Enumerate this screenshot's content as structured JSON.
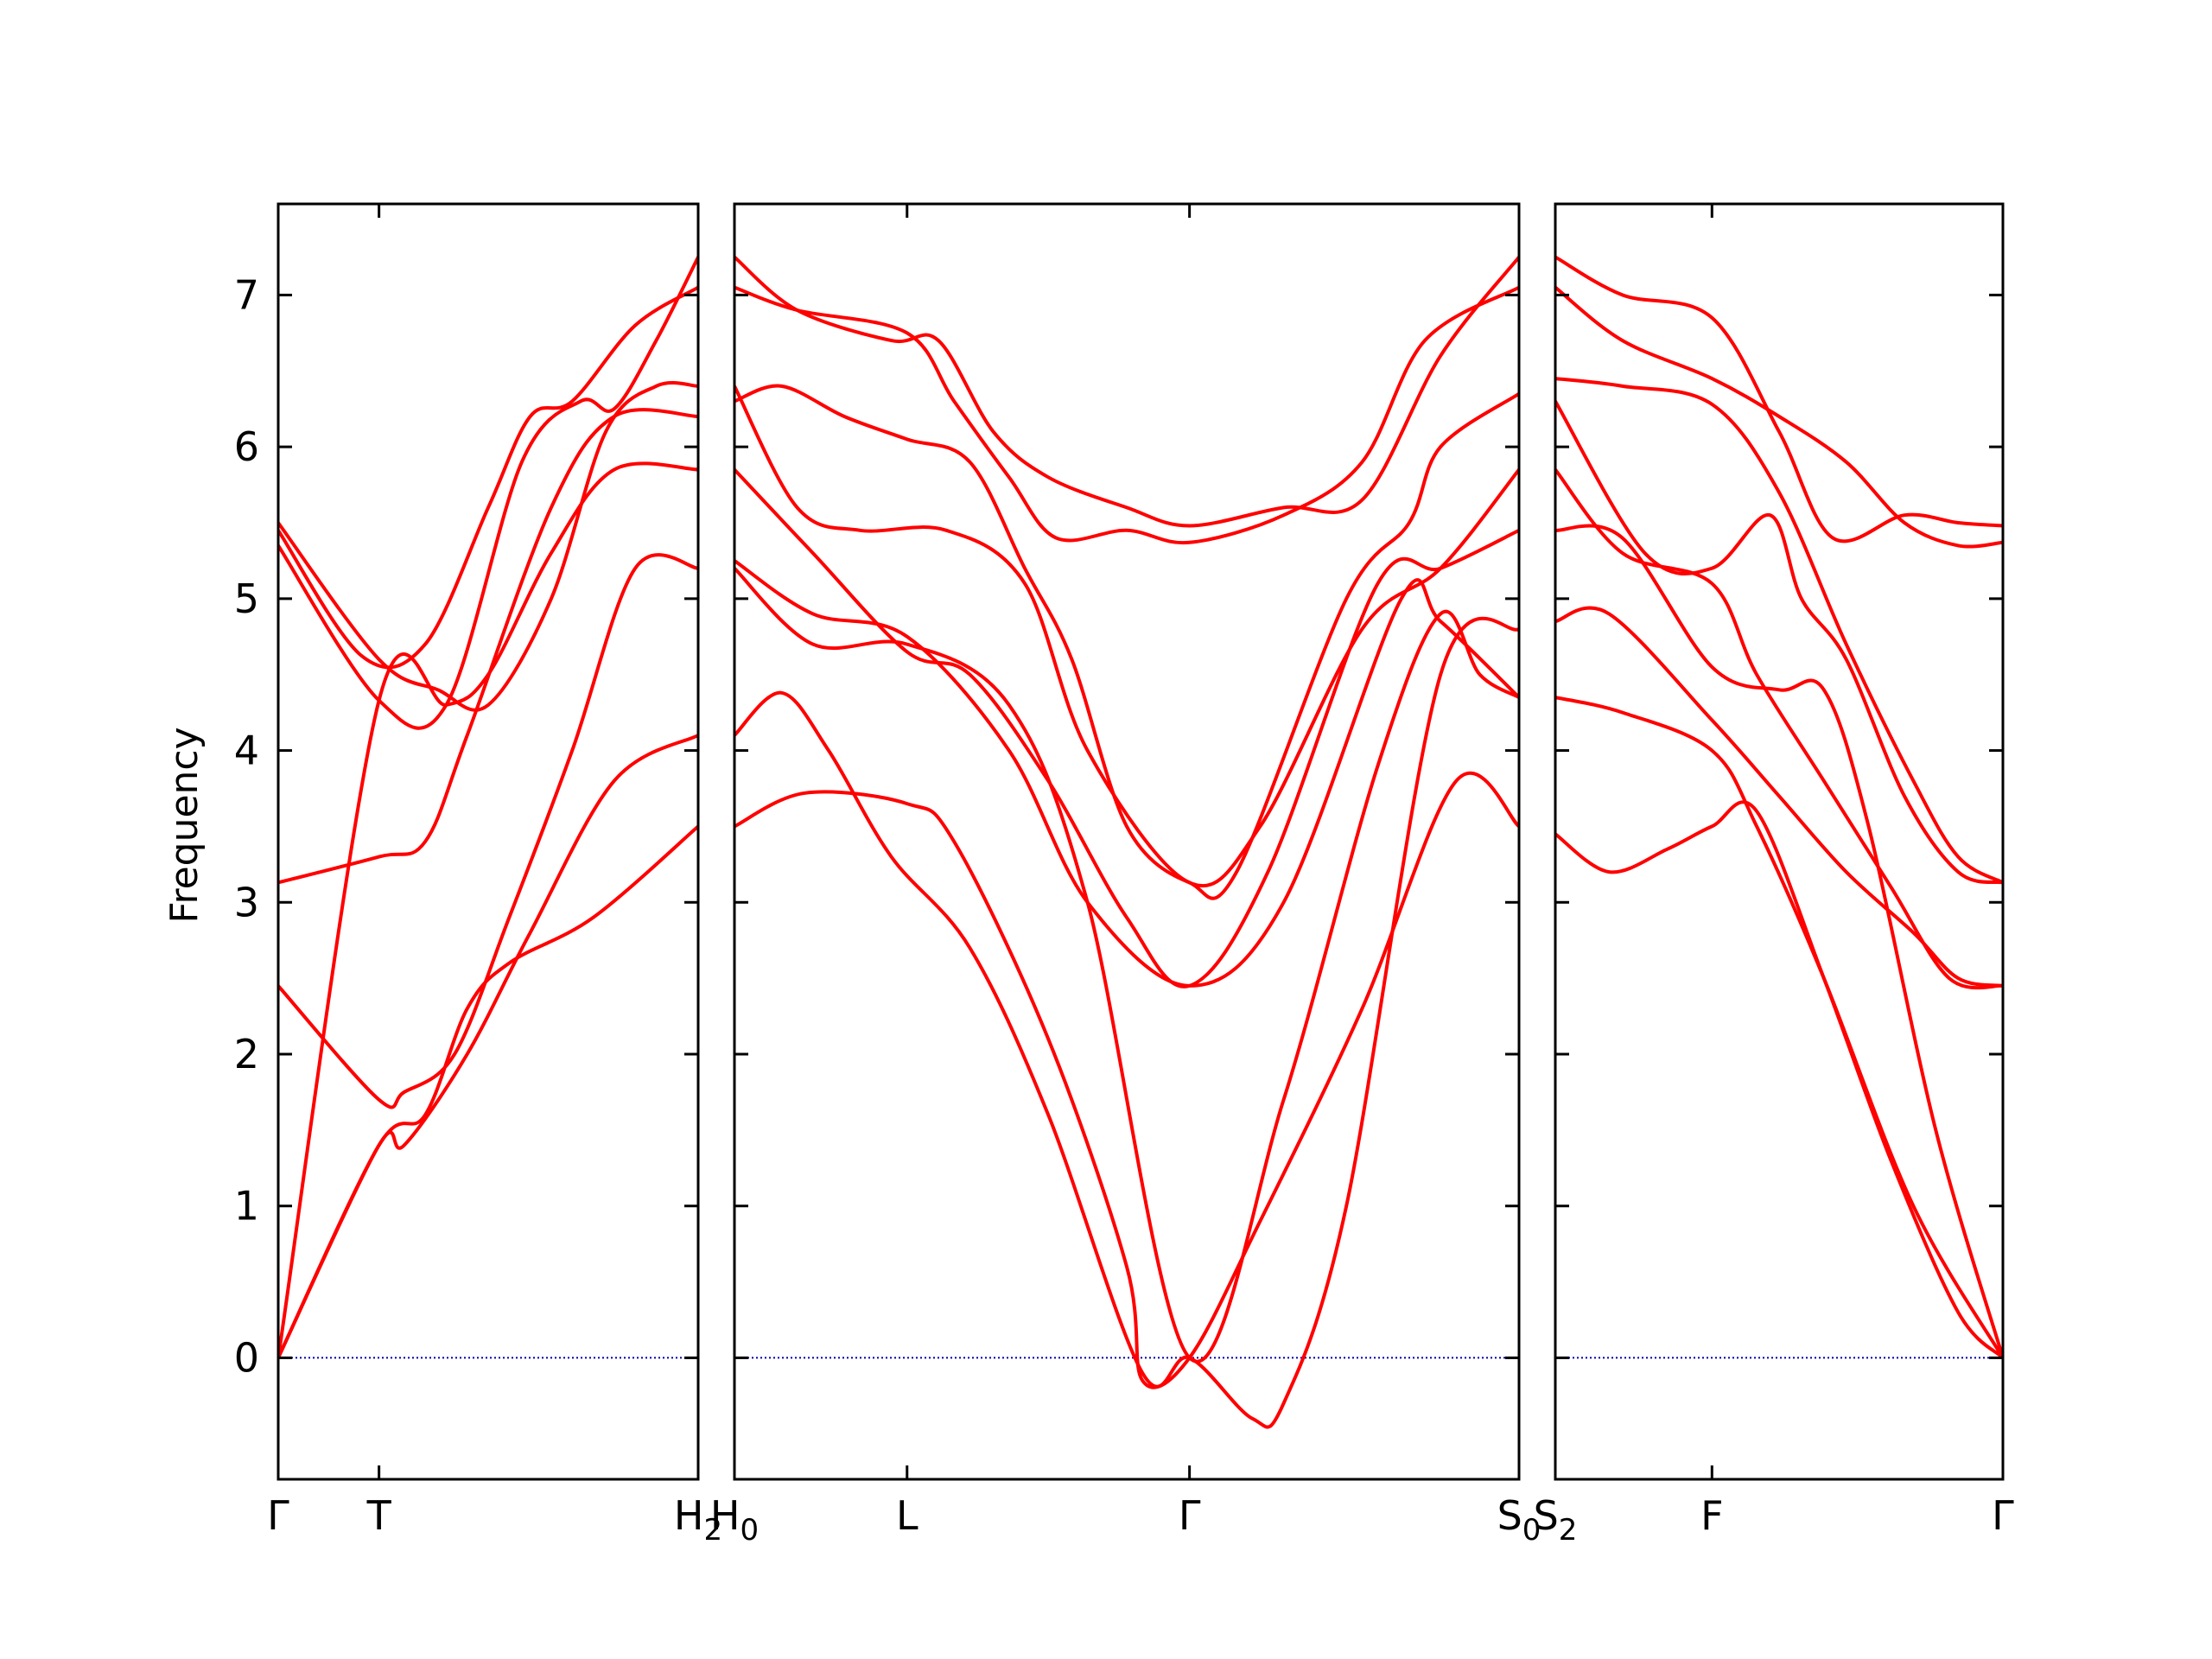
{
  "chart_data": {
    "type": "line",
    "ylabel": "Frequency",
    "ylim": [
      -0.8,
      7.6
    ],
    "yticks": [
      0,
      1,
      2,
      3,
      4,
      5,
      6,
      7
    ],
    "zero_line_color": "#0000aa",
    "band_color": "#ff0000",
    "panels": [
      {
        "segment": "Γ-T-H2",
        "xrange": [
          0,
          1
        ],
        "ticks": [
          {
            "x": 0,
            "label": "Γ",
            "sub": ""
          },
          {
            "x": 0.24,
            "label": "T",
            "sub": ""
          },
          {
            "x": 1,
            "label": "H",
            "sub": "2"
          }
        ],
        "bands": [
          [
            [
              0,
              0
            ],
            [
              0.24,
              1.4
            ],
            [
              0.3,
              1.4
            ],
            [
              0.45,
              2.0
            ],
            [
              0.6,
              2.8
            ],
            [
              0.8,
              3.8
            ],
            [
              1,
              4.1
            ]
          ],
          [
            [
              0,
              0
            ],
            [
              0.24,
              1.4
            ],
            [
              0.35,
              1.6
            ],
            [
              0.45,
              2.3
            ],
            [
              0.55,
              2.6
            ],
            [
              0.75,
              2.9
            ],
            [
              1,
              3.5
            ]
          ],
          [
            [
              0,
              2.45
            ],
            [
              0.24,
              1.7
            ],
            [
              0.3,
              1.75
            ],
            [
              0.42,
              2.0
            ],
            [
              0.55,
              2.9
            ],
            [
              0.7,
              4.0
            ],
            [
              0.85,
              5.2
            ],
            [
              1,
              5.2
            ]
          ],
          [
            [
              0,
              0
            ],
            [
              0.24,
              4.33
            ],
            [
              0.4,
              4.3
            ],
            [
              0.5,
              4.5
            ],
            [
              0.65,
              5.3
            ],
            [
              0.8,
              5.85
            ],
            [
              1,
              5.85
            ]
          ],
          [
            [
              0,
              3.13
            ],
            [
              0.24,
              3.3
            ],
            [
              0.35,
              3.4
            ],
            [
              0.45,
              4.1
            ],
            [
              0.65,
              5.6
            ],
            [
              0.8,
              6.2
            ],
            [
              1,
              6.2
            ]
          ],
          [
            [
              0,
              5.5
            ],
            [
              0.24,
              4.6
            ],
            [
              0.38,
              4.4
            ],
            [
              0.5,
              4.3
            ],
            [
              0.65,
              5.0
            ],
            [
              0.78,
              6.1
            ],
            [
              0.9,
              6.4
            ],
            [
              1,
              6.4
            ]
          ],
          [
            [
              0,
              5.35
            ],
            [
              0.24,
              4.33
            ],
            [
              0.4,
              4.3
            ],
            [
              0.58,
              5.9
            ],
            [
              0.72,
              6.3
            ],
            [
              0.8,
              6.25
            ],
            [
              0.9,
              6.7
            ],
            [
              1,
              7.25
            ]
          ],
          [
            [
              0,
              5.45
            ],
            [
              0.2,
              4.62
            ],
            [
              0.35,
              4.7
            ],
            [
              0.5,
              5.6
            ],
            [
              0.6,
              6.2
            ],
            [
              0.7,
              6.3
            ],
            [
              0.85,
              6.8
            ],
            [
              1,
              7.05
            ]
          ]
        ]
      },
      {
        "segment": "H0-L-Γ-S0",
        "xrange": [
          0,
          1
        ],
        "ticks": [
          {
            "x": 0,
            "label": "H",
            "sub": "0"
          },
          {
            "x": 0.22,
            "label": "L",
            "sub": ""
          },
          {
            "x": 0.58,
            "label": "Γ",
            "sub": ""
          },
          {
            "x": 1,
            "label": "S",
            "sub": "0"
          }
        ],
        "bands": [
          [
            [
              0,
              3.5
            ],
            [
              0.09,
              3.72
            ],
            [
              0.22,
              3.65
            ],
            [
              0.28,
              3.4
            ],
            [
              0.4,
              2.1
            ],
            [
              0.5,
              0.6
            ],
            [
              0.52,
              -0.15
            ],
            [
              0.58,
              0
            ],
            [
              0.67,
              0.9
            ],
            [
              0.8,
              2.3
            ],
            [
              0.92,
              3.8
            ],
            [
              1,
              3.5
            ]
          ],
          [
            [
              0,
              4.1
            ],
            [
              0.06,
              4.38
            ],
            [
              0.12,
              4.0
            ],
            [
              0.2,
              3.3
            ],
            [
              0.3,
              2.7
            ],
            [
              0.4,
              1.6
            ],
            [
              0.52,
              -0.1
            ],
            [
              0.58,
              0
            ],
            [
              0.66,
              -0.4
            ],
            [
              0.7,
              -0.3
            ],
            [
              0.78,
              1.0
            ],
            [
              0.9,
              4.5
            ],
            [
              1,
              4.8
            ]
          ],
          [
            [
              0,
              5.2
            ],
            [
              0.1,
              4.7
            ],
            [
              0.22,
              4.7
            ],
            [
              0.35,
              4.3
            ],
            [
              0.45,
              3.0
            ],
            [
              0.58,
              0
            ],
            [
              0.7,
              1.7
            ],
            [
              0.82,
              3.9
            ],
            [
              0.9,
              4.9
            ],
            [
              0.95,
              4.5
            ],
            [
              1,
              4.35
            ]
          ],
          [
            [
              0,
              5.25
            ],
            [
              0.1,
              4.9
            ],
            [
              0.22,
              4.75
            ],
            [
              0.35,
              4.0
            ],
            [
              0.45,
              3.0
            ],
            [
              0.58,
              2.45
            ],
            [
              0.7,
              3.0
            ],
            [
              0.85,
              5.0
            ],
            [
              0.9,
              4.85
            ],
            [
              1,
              4.35
            ]
          ],
          [
            [
              0,
              5.85
            ],
            [
              0.1,
              5.3
            ],
            [
              0.22,
              4.65
            ],
            [
              0.3,
              4.5
            ],
            [
              0.4,
              3.8
            ],
            [
              0.5,
              2.9
            ],
            [
              0.58,
              2.45
            ],
            [
              0.68,
              3.2
            ],
            [
              0.82,
              5.1
            ],
            [
              0.9,
              5.2
            ],
            [
              1,
              5.45
            ]
          ],
          [
            [
              0,
              6.4
            ],
            [
              0.08,
              5.6
            ],
            [
              0.16,
              5.45
            ],
            [
              0.27,
              5.45
            ],
            [
              0.37,
              5.1
            ],
            [
              0.45,
              4.0
            ],
            [
              0.58,
              3.13
            ],
            [
              0.67,
              3.5
            ],
            [
              0.8,
              4.8
            ],
            [
              0.9,
              5.2
            ],
            [
              1,
              5.85
            ]
          ],
          [
            [
              0,
              6.3
            ],
            [
              0.06,
              6.4
            ],
            [
              0.14,
              6.2
            ],
            [
              0.22,
              6.05
            ],
            [
              0.3,
              5.9
            ],
            [
              0.37,
              5.2
            ],
            [
              0.43,
              4.6
            ],
            [
              0.5,
              3.5
            ],
            [
              0.58,
              3.13
            ],
            [
              0.64,
              3.2
            ],
            [
              0.78,
              5.0
            ],
            [
              0.86,
              5.5
            ],
            [
              0.9,
              6.0
            ],
            [
              1,
              6.35
            ]
          ],
          [
            [
              0,
              7.05
            ],
            [
              0.08,
              6.9
            ],
            [
              0.22,
              6.75
            ],
            [
              0.28,
              6.3
            ],
            [
              0.35,
              5.8
            ],
            [
              0.41,
              5.4
            ],
            [
              0.5,
              5.45
            ],
            [
              0.58,
              5.37
            ],
            [
              0.7,
              5.55
            ],
            [
              0.8,
              5.9
            ],
            [
              0.88,
              6.7
            ],
            [
              1,
              7.05
            ]
          ],
          [
            [
              0,
              7.25
            ],
            [
              0.08,
              6.9
            ],
            [
              0.2,
              6.7
            ],
            [
              0.26,
              6.7
            ],
            [
              0.33,
              6.1
            ],
            [
              0.4,
              5.8
            ],
            [
              0.5,
              5.6
            ],
            [
              0.58,
              5.48
            ],
            [
              0.7,
              5.6
            ],
            [
              0.8,
              5.65
            ],
            [
              0.9,
              6.6
            ],
            [
              1,
              7.25
            ]
          ]
        ]
      },
      {
        "segment": "S2-F-Γ",
        "xrange": [
          0,
          1
        ],
        "ticks": [
          {
            "x": 0,
            "label": "S",
            "sub": "2"
          },
          {
            "x": 0.35,
            "label": "F",
            "sub": ""
          },
          {
            "x": 1,
            "label": "Γ",
            "sub": ""
          }
        ],
        "bands": [
          [
            [
              0,
              3.45
            ],
            [
              0.12,
              3.2
            ],
            [
              0.25,
              3.35
            ],
            [
              0.35,
              3.5
            ],
            [
              0.45,
              3.6
            ],
            [
              0.6,
              2.5
            ],
            [
              0.75,
              1.3
            ],
            [
              0.9,
              0.3
            ],
            [
              1,
              0
            ]
          ],
          [
            [
              0,
              4.35
            ],
            [
              0.15,
              4.25
            ],
            [
              0.35,
              4.0
            ],
            [
              0.45,
              3.5
            ],
            [
              0.6,
              2.5
            ],
            [
              0.8,
              1.0
            ],
            [
              1,
              0
            ]
          ],
          [
            [
              0,
              4.85
            ],
            [
              0.12,
              4.9
            ],
            [
              0.35,
              4.2
            ],
            [
              0.5,
              3.7
            ],
            [
              0.65,
              3.2
            ],
            [
              0.8,
              2.8
            ],
            [
              0.9,
              2.5
            ],
            [
              1,
              2.45
            ]
          ],
          [
            [
              0,
              5.45
            ],
            [
              0.15,
              5.4
            ],
            [
              0.35,
              4.55
            ],
            [
              0.5,
              4.4
            ],
            [
              0.6,
              4.4
            ],
            [
              0.7,
              3.5
            ],
            [
              0.85,
              1.5
            ],
            [
              1,
              0
            ]
          ],
          [
            [
              0,
              5.85
            ],
            [
              0.15,
              5.3
            ],
            [
              0.35,
              5.1
            ],
            [
              0.45,
              4.5
            ],
            [
              0.6,
              3.8
            ],
            [
              0.75,
              3.1
            ],
            [
              0.88,
              2.5
            ],
            [
              1,
              2.45
            ]
          ],
          [
            [
              0,
              6.3
            ],
            [
              0.2,
              5.3
            ],
            [
              0.35,
              5.2
            ],
            [
              0.48,
              5.55
            ],
            [
              0.55,
              5.0
            ],
            [
              0.65,
              4.6
            ],
            [
              0.78,
              3.7
            ],
            [
              0.9,
              3.2
            ],
            [
              1,
              3.13
            ]
          ],
          [
            [
              0,
              6.45
            ],
            [
              0.15,
              6.4
            ],
            [
              0.35,
              6.28
            ],
            [
              0.5,
              5.7
            ],
            [
              0.65,
              4.7
            ],
            [
              0.8,
              3.8
            ],
            [
              0.9,
              3.3
            ],
            [
              1,
              3.13
            ]
          ],
          [
            [
              0,
              7.05
            ],
            [
              0.15,
              6.7
            ],
            [
              0.35,
              6.45
            ],
            [
              0.5,
              6.2
            ],
            [
              0.65,
              5.9
            ],
            [
              0.78,
              5.5
            ],
            [
              0.9,
              5.35
            ],
            [
              1,
              5.37
            ]
          ],
          [
            [
              0,
              7.25
            ],
            [
              0.15,
              7.0
            ],
            [
              0.35,
              6.85
            ],
            [
              0.5,
              6.1
            ],
            [
              0.62,
              5.4
            ],
            [
              0.78,
              5.55
            ],
            [
              0.9,
              5.5
            ],
            [
              1,
              5.48
            ]
          ]
        ]
      }
    ]
  }
}
